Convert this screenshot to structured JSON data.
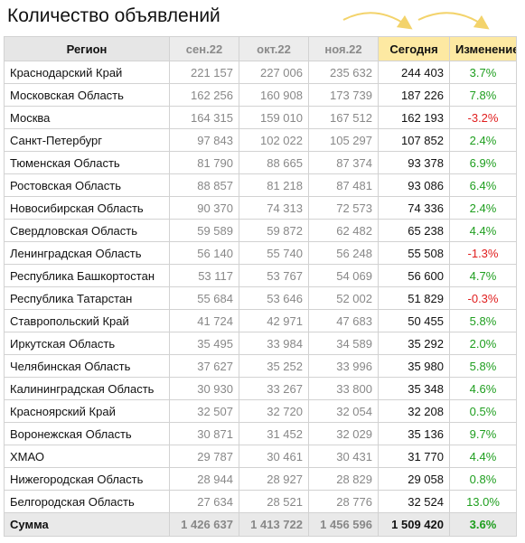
{
  "title": "Количество объявлений",
  "colors": {
    "positive": "#1e9e1e",
    "negative": "#e01e1e",
    "highlight": "#fde9a2",
    "arrow": "#f3d36b"
  },
  "headers": [
    "Регион",
    "сен.22",
    "окт.22",
    "ноя.22",
    "Сегодня",
    "Изменение"
  ],
  "chart_data": {
    "type": "table",
    "columns": [
      "Регион",
      "сен.22",
      "окт.22",
      "ноя.22",
      "Сегодня",
      "Изменение"
    ],
    "rows": [
      [
        "Краснодарский Край",
        "221 157",
        "227 006",
        "235 632",
        "244 403",
        "3.7%"
      ],
      [
        "Московская Область",
        "162 256",
        "160 908",
        "173 739",
        "187 226",
        "7.8%"
      ],
      [
        "Москва",
        "164 315",
        "159 010",
        "167 512",
        "162 193",
        "-3.2%"
      ],
      [
        "Санкт-Петербург",
        "97 843",
        "102 022",
        "105 297",
        "107 852",
        "2.4%"
      ],
      [
        "Тюменская Область",
        "81 790",
        "88 665",
        "87 374",
        "93 378",
        "6.9%"
      ],
      [
        "Ростовская Область",
        "88 857",
        "81 218",
        "87 481",
        "93 086",
        "6.4%"
      ],
      [
        "Новосибирская Область",
        "90 370",
        "74 313",
        "72 573",
        "74 336",
        "2.4%"
      ],
      [
        "Свердловская Область",
        "59 589",
        "59 872",
        "62 482",
        "65 238",
        "4.4%"
      ],
      [
        "Ленинградская Область",
        "56 140",
        "55 740",
        "56 248",
        "55 508",
        "-1.3%"
      ],
      [
        "Республика Башкортостан",
        "53 117",
        "53 767",
        "54 069",
        "56 600",
        "4.7%"
      ],
      [
        "Республика Татарстан",
        "55 684",
        "53 646",
        "52 002",
        "51 829",
        "-0.3%"
      ],
      [
        "Ставропольский Край",
        "41 724",
        "42 971",
        "47 683",
        "50 455",
        "5.8%"
      ],
      [
        "Иркутская Область",
        "35 495",
        "33 984",
        "34 589",
        "35 292",
        "2.0%"
      ],
      [
        "Челябинская Область",
        "37 627",
        "35 252",
        "33 996",
        "35 980",
        "5.8%"
      ],
      [
        "Калининградская Область",
        "30 930",
        "33 267",
        "33 800",
        "35 348",
        "4.6%"
      ],
      [
        "Красноярский Край",
        "32 507",
        "32 720",
        "32 054",
        "32 208",
        "0.5%"
      ],
      [
        "Воронежская Область",
        "30 871",
        "31 452",
        "32 029",
        "35 136",
        "9.7%"
      ],
      [
        "ХМАО",
        "29 787",
        "30 461",
        "30 431",
        "31 770",
        "4.4%"
      ],
      [
        "Нижегородская Область",
        "28 944",
        "28 927",
        "28 829",
        "29 058",
        "0.8%"
      ],
      [
        "Белгородская Область",
        "27 634",
        "28 521",
        "28 776",
        "32 524",
        "13.0%"
      ]
    ],
    "total": [
      "Сумма",
      "1 426 637",
      "1 413 722",
      "1 456 596",
      "1 509 420",
      "3.6%"
    ]
  }
}
